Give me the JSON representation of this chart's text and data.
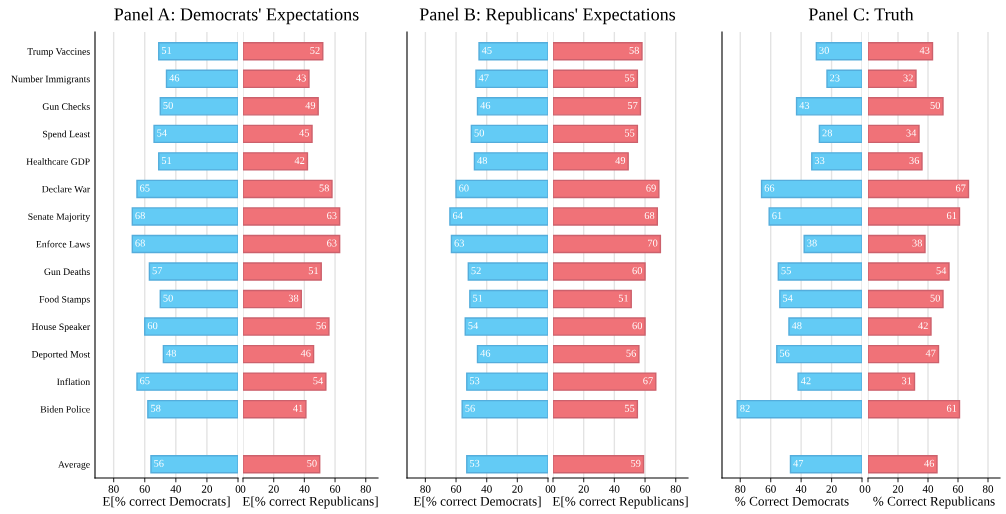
{
  "chart_data": [
    {
      "type": "bar",
      "orientation": "horizontal",
      "title": "Panel A: Democrats' Expectations",
      "xlabel": "E[% correct Democrats]",
      "categories": [
        "Trump Vaccines",
        "Number Immigrants",
        "Gun Checks",
        "Spend Least",
        "Healthcare GDP",
        "Declare War",
        "Senate Majority",
        "Enforce Laws",
        "Gun Deaths",
        "Food Stamps",
        "House Speaker",
        "Deported Most",
        "Inflation",
        "Biden Police",
        null,
        "Average"
      ],
      "series": [
        {
          "color": "#63cbf5",
          "values": [
            51,
            46,
            50,
            54,
            51,
            65,
            68,
            68,
            57,
            50,
            60,
            48,
            65,
            58,
            null,
            56
          ]
        }
      ],
      "xlim": [
        92,
        0
      ],
      "xticks": [
        80,
        60,
        40,
        20,
        0
      ],
      "grid": "x",
      "data_labels": true
    },
    {
      "type": "bar",
      "orientation": "horizontal",
      "xlabel": "E[% correct Republicans]",
      "categories": [
        null,
        null,
        null,
        null,
        null,
        null,
        null,
        null,
        null,
        null,
        null,
        null,
        null,
        null,
        null,
        null
      ],
      "series": [
        {
          "color": "#f07278",
          "values": [
            52,
            43,
            49,
            45,
            42,
            58,
            63,
            63,
            51,
            38,
            56,
            46,
            54,
            41,
            null,
            50
          ]
        }
      ],
      "xlim": [
        0,
        88
      ],
      "xticks": [
        0,
        20,
        40,
        60,
        80
      ],
      "grid": "x",
      "data_labels": true,
      "tick_labels": "x"
    },
    {
      "type": "bar",
      "orientation": "horizontal",
      "title": "Panel B: Republicans' Expectations",
      "xlabel": "E[% correct Democrats]",
      "categories": [
        null,
        null,
        null,
        null,
        null,
        null,
        null,
        null,
        null,
        null,
        null,
        null,
        null,
        null,
        null,
        null
      ],
      "series": [
        {
          "color": "#63cbf5",
          "values": [
            45,
            47,
            46,
            50,
            48,
            60,
            64,
            63,
            52,
            51,
            54,
            46,
            53,
            56,
            null,
            53
          ]
        }
      ],
      "xlim": [
        92,
        0
      ],
      "xticks": [
        80,
        60,
        40,
        20,
        0
      ],
      "grid": "x",
      "data_labels": true,
      "tick_labels": "x"
    },
    {
      "type": "bar",
      "orientation": "horizontal",
      "xlabel": "E[% correct Republicans]",
      "categories": [
        null,
        null,
        null,
        null,
        null,
        null,
        null,
        null,
        null,
        null,
        null,
        null,
        null,
        null,
        null,
        null
      ],
      "series": [
        {
          "color": "#f07278",
          "values": [
            58,
            55,
            57,
            55,
            49,
            69,
            68,
            70,
            60,
            51,
            60,
            56,
            67,
            55,
            null,
            59
          ]
        }
      ],
      "xlim": [
        0,
        88
      ],
      "xticks": [
        0,
        20,
        40,
        60,
        80
      ],
      "grid": "x",
      "data_labels": true,
      "tick_labels": "x"
    },
    {
      "type": "bar",
      "orientation": "horizontal",
      "title": "Panel C: Truth",
      "xlabel": "% Correct Democrats",
      "categories": [
        null,
        null,
        null,
        null,
        null,
        null,
        null,
        null,
        null,
        null,
        null,
        null,
        null,
        null,
        null,
        null
      ],
      "series": [
        {
          "color": "#63cbf5",
          "values": [
            30,
            23,
            43,
            28,
            33,
            66,
            61,
            38,
            55,
            54,
            48,
            56,
            42,
            82,
            null,
            47
          ]
        }
      ],
      "xlim": [
        92,
        0
      ],
      "xticks": [
        80,
        60,
        40,
        20,
        0
      ],
      "grid": "x",
      "data_labels": true,
      "tick_labels": "x"
    },
    {
      "type": "bar",
      "orientation": "horizontal",
      "xlabel": "% Correct Republicans",
      "categories": [
        null,
        null,
        null,
        null,
        null,
        null,
        null,
        null,
        null,
        null,
        null,
        null,
        null,
        null,
        null,
        null
      ],
      "series": [
        {
          "color": "#f07278",
          "values": [
            43,
            32,
            50,
            34,
            36,
            67,
            61,
            38,
            54,
            50,
            42,
            47,
            31,
            61,
            null,
            46
          ]
        }
      ],
      "xlim": [
        0,
        88
      ],
      "xticks": [
        0,
        20,
        40,
        60,
        80
      ],
      "grid": "x",
      "data_labels": true,
      "tick_labels": "x"
    }
  ]
}
